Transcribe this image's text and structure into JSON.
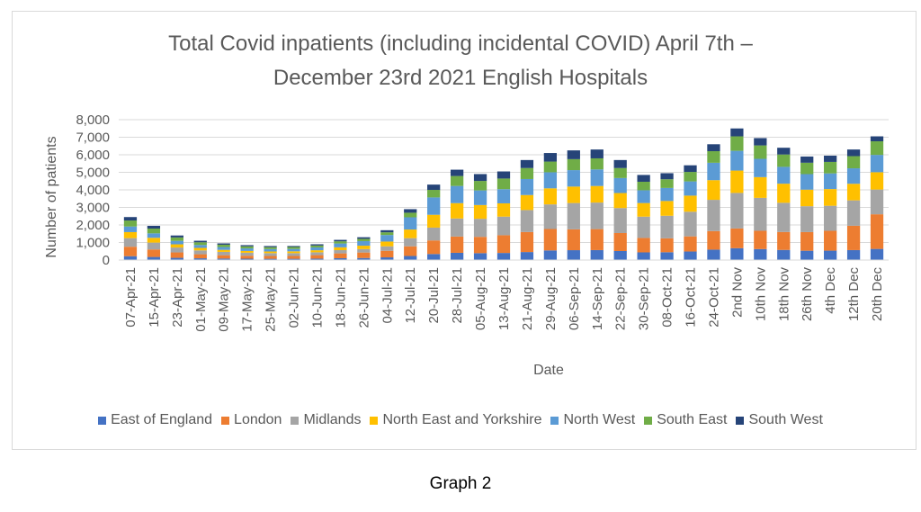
{
  "chart_data": {
    "type": "bar",
    "stacked": true,
    "title_line1": "Total Covid inpatients (including incidental COVID)  April 7th –",
    "title_line2": "December 23rd 2021 English Hospitals",
    "xlabel": "Date",
    "ylabel": "Number of patients",
    "ylim": [
      0,
      8000
    ],
    "yticks": [
      "0",
      "1,000",
      "2,000",
      "3,000",
      "4,000",
      "5,000",
      "6,000",
      "7,000",
      "8,000"
    ],
    "xticks": [
      "07-Apr-21",
      "15-Apr-21",
      "23-Apr-21",
      "01-May-21",
      "09-May-21",
      "17-May-21",
      "25-May-21",
      "02-Jun-21",
      "10-Jun-21",
      "18-Jun-21",
      "26-Jun-21",
      "04-Jul-21",
      "12-Jul-21",
      "20-Jul-21",
      "28-Jul-21",
      "05-Aug-21",
      "13-Aug-21",
      "21-Aug-21",
      "29-Aug-21",
      "06-Sep-21",
      "14-Sep-21",
      "22-Sep-21",
      "30-Sep-21",
      "08-Oct-21",
      "16-Oct-21",
      "24-Oct-21",
      "2nd Nov",
      "10th Nov",
      "18th Nov",
      "26th Nov",
      "4th Dec",
      "12th Dec",
      "20th Dec"
    ],
    "legend_position": "bottom",
    "grid": true,
    "totals_at_xticks": [
      2450,
      1950,
      1400,
      1100,
      950,
      850,
      800,
      800,
      900,
      1150,
      1300,
      1700,
      2900,
      4300,
      5150,
      4900,
      5050,
      5700,
      6100,
      6250,
      6300,
      5700,
      4850,
      4950,
      5400,
      6600,
      7500,
      6950,
      6400,
      5900,
      5950,
      6300,
      7050
    ],
    "series": [
      {
        "name": "East of England",
        "color": "#4472C4",
        "share": [
          0.09,
          0.09,
          0.09,
          0.09,
          0.09,
          0.09,
          0.09,
          0.09,
          0.09,
          0.09,
          0.09,
          0.09,
          0.08,
          0.08,
          0.08,
          0.08,
          0.08,
          0.08,
          0.09,
          0.09,
          0.09,
          0.09,
          0.09,
          0.09,
          0.09,
          0.09,
          0.09,
          0.09,
          0.09,
          0.09,
          0.09,
          0.09,
          0.09
        ]
      },
      {
        "name": "London",
        "color": "#ED7D31",
        "share": [
          0.22,
          0.22,
          0.22,
          0.21,
          0.2,
          0.2,
          0.2,
          0.2,
          0.22,
          0.24,
          0.24,
          0.22,
          0.19,
          0.18,
          0.18,
          0.19,
          0.2,
          0.2,
          0.2,
          0.19,
          0.19,
          0.18,
          0.17,
          0.16,
          0.16,
          0.16,
          0.15,
          0.15,
          0.16,
          0.18,
          0.19,
          0.22,
          0.28
        ]
      },
      {
        "name": "Midlands",
        "color": "#A5A5A5",
        "share": [
          0.2,
          0.2,
          0.2,
          0.2,
          0.2,
          0.2,
          0.2,
          0.2,
          0.18,
          0.16,
          0.15,
          0.15,
          0.16,
          0.17,
          0.2,
          0.21,
          0.21,
          0.22,
          0.23,
          0.24,
          0.24,
          0.25,
          0.25,
          0.26,
          0.26,
          0.27,
          0.27,
          0.27,
          0.26,
          0.25,
          0.24,
          0.23,
          0.2
        ]
      },
      {
        "name": "North East and Yorkshire",
        "color": "#FFC000",
        "share": [
          0.14,
          0.14,
          0.13,
          0.13,
          0.12,
          0.12,
          0.12,
          0.13,
          0.13,
          0.14,
          0.15,
          0.16,
          0.17,
          0.17,
          0.17,
          0.16,
          0.15,
          0.15,
          0.15,
          0.15,
          0.15,
          0.15,
          0.16,
          0.17,
          0.17,
          0.17,
          0.17,
          0.17,
          0.17,
          0.16,
          0.16,
          0.15,
          0.14
        ]
      },
      {
        "name": "North West",
        "color": "#5B9BD5",
        "share": [
          0.13,
          0.13,
          0.14,
          0.15,
          0.17,
          0.17,
          0.17,
          0.17,
          0.18,
          0.19,
          0.2,
          0.22,
          0.24,
          0.23,
          0.19,
          0.17,
          0.16,
          0.16,
          0.15,
          0.15,
          0.15,
          0.15,
          0.15,
          0.15,
          0.15,
          0.15,
          0.15,
          0.15,
          0.15,
          0.15,
          0.15,
          0.14,
          0.14
        ]
      },
      {
        "name": "South East",
        "color": "#70AD47",
        "share": [
          0.14,
          0.14,
          0.14,
          0.14,
          0.14,
          0.14,
          0.14,
          0.14,
          0.12,
          0.11,
          0.1,
          0.09,
          0.09,
          0.1,
          0.11,
          0.11,
          0.12,
          0.11,
          0.1,
          0.1,
          0.1,
          0.1,
          0.1,
          0.1,
          0.1,
          0.1,
          0.11,
          0.11,
          0.11,
          0.11,
          0.11,
          0.11,
          0.11
        ]
      },
      {
        "name": "South West",
        "color": "#264478",
        "share": [
          0.08,
          0.08,
          0.08,
          0.08,
          0.08,
          0.08,
          0.08,
          0.07,
          0.08,
          0.07,
          0.07,
          0.07,
          0.07,
          0.07,
          0.07,
          0.08,
          0.08,
          0.08,
          0.08,
          0.08,
          0.08,
          0.08,
          0.08,
          0.07,
          0.07,
          0.06,
          0.06,
          0.06,
          0.06,
          0.06,
          0.06,
          0.06,
          0.04
        ]
      }
    ]
  },
  "caption": "Graph 2"
}
